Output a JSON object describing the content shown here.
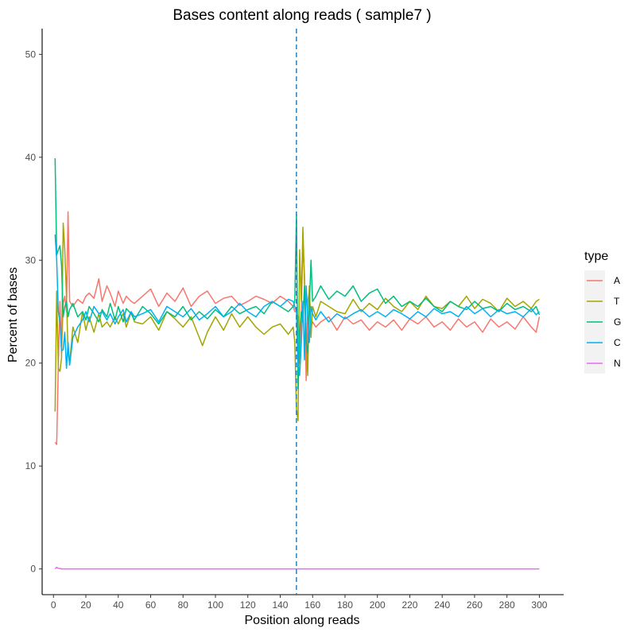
{
  "chart_data": {
    "type": "line",
    "title": "Bases content along reads ( sample7 )",
    "xlabel": "Position along reads",
    "ylabel": "Percent of bases",
    "xlim": [
      -7,
      315
    ],
    "ylim": [
      -2.5,
      52.5
    ],
    "x_ticks": [
      0,
      20,
      40,
      60,
      80,
      100,
      120,
      140,
      160,
      180,
      200,
      220,
      240,
      260,
      280,
      300
    ],
    "y_ticks": [
      0,
      10,
      20,
      30,
      40,
      50
    ],
    "grid": false,
    "legend": {
      "title": "type",
      "placement": "right"
    },
    "vline": {
      "x": 150,
      "style": "dashed",
      "color": "#2c7fb8"
    },
    "series": [
      {
        "name": "A",
        "color": "#F8766D",
        "x": [
          1,
          2,
          3,
          4,
          5,
          6,
          7,
          8,
          9,
          10,
          12,
          15,
          18,
          20,
          22,
          25,
          28,
          30,
          33,
          35,
          38,
          40,
          43,
          45,
          48,
          50,
          55,
          60,
          65,
          70,
          75,
          80,
          85,
          90,
          95,
          100,
          105,
          110,
          115,
          120,
          125,
          130,
          135,
          140,
          145,
          148,
          149,
          150,
          151,
          152,
          153,
          154,
          155,
          156,
          157,
          158,
          159,
          160,
          162,
          165,
          170,
          175,
          180,
          185,
          190,
          195,
          200,
          205,
          210,
          215,
          220,
          225,
          230,
          235,
          240,
          245,
          250,
          255,
          260,
          265,
          270,
          275,
          280,
          285,
          290,
          295,
          298,
          300
        ],
        "y": [
          12.3,
          12.1,
          20,
          26,
          21,
          25.8,
          26.5,
          25,
          34.7,
          26,
          25.5,
          26.2,
          25.8,
          26.5,
          26.8,
          26.3,
          28.2,
          26,
          27.5,
          26.8,
          25.5,
          27,
          25.8,
          26.5,
          26,
          25.8,
          26.5,
          27.2,
          25.5,
          26.8,
          26,
          27.3,
          25.5,
          26.5,
          27,
          25.8,
          26.3,
          26.5,
          25.6,
          26,
          26.5,
          26.2,
          25.8,
          26.5,
          26,
          25.5,
          25,
          25,
          24.5,
          20,
          25,
          31.5,
          28.5,
          18.3,
          26,
          27,
          23.5,
          24,
          23.5,
          24,
          24.5,
          23.2,
          24.5,
          23.8,
          24.2,
          23.2,
          24,
          23.5,
          24.2,
          23.2,
          24.3,
          23.8,
          24.5,
          23.5,
          24,
          23.2,
          24.3,
          23.5,
          24,
          23,
          24.3,
          23.5,
          24,
          23.3,
          24.5,
          23.5,
          23,
          24.5
        ]
      },
      {
        "name": "T",
        "color": "#A3A500",
        "x": [
          1,
          2,
          3,
          4,
          5,
          6,
          7,
          8,
          9,
          10,
          12,
          15,
          18,
          20,
          22,
          25,
          28,
          30,
          33,
          35,
          38,
          40,
          43,
          45,
          48,
          50,
          55,
          60,
          65,
          70,
          75,
          80,
          85,
          90,
          92,
          95,
          100,
          105,
          110,
          115,
          120,
          125,
          130,
          135,
          140,
          145,
          148,
          149,
          150,
          151,
          152,
          153,
          154,
          155,
          156,
          157,
          158,
          159,
          160,
          162,
          165,
          170,
          175,
          180,
          185,
          190,
          195,
          200,
          205,
          210,
          215,
          220,
          225,
          230,
          235,
          240,
          245,
          250,
          255,
          260,
          265,
          270,
          275,
          280,
          285,
          290,
          295,
          298,
          300
        ],
        "y": [
          15.3,
          27,
          19.5,
          19.2,
          20.5,
          33.6,
          31,
          26.5,
          21,
          20,
          23.5,
          22,
          25,
          23.2,
          24.5,
          23,
          24.8,
          23.5,
          24,
          23.5,
          24.5,
          23.8,
          24.8,
          23.5,
          25,
          24,
          23.8,
          24.5,
          23.2,
          25,
          24.3,
          23.5,
          24.5,
          22.5,
          21.7,
          23,
          24.5,
          23.2,
          24.8,
          23.5,
          24.5,
          23.5,
          22.8,
          23.5,
          23.8,
          22.8,
          23.5,
          22,
          15.5,
          14.4,
          31,
          26,
          33.2,
          28,
          23,
          18.8,
          27.5,
          22.5,
          25.5,
          24.5,
          26,
          25.5,
          25,
          24.8,
          26.2,
          25,
          25.8,
          25.2,
          26.3,
          25.5,
          25,
          26,
          25.2,
          26.5,
          25.5,
          25.3,
          26,
          25.5,
          26.5,
          25.3,
          26.2,
          25.8,
          25,
          26.3,
          25.5,
          26,
          25.3,
          26,
          26.2
        ]
      },
      {
        "name": "G",
        "color": "#00BF7D",
        "x": [
          1,
          2,
          3,
          4,
          5,
          6,
          7,
          8,
          9,
          10,
          12,
          15,
          18,
          20,
          22,
          25,
          28,
          30,
          33,
          35,
          38,
          40,
          43,
          45,
          48,
          50,
          55,
          60,
          65,
          70,
          75,
          80,
          85,
          90,
          95,
          100,
          105,
          110,
          115,
          120,
          125,
          130,
          135,
          140,
          145,
          148,
          149,
          150,
          151,
          152,
          153,
          154,
          155,
          156,
          157,
          158,
          159,
          160,
          162,
          165,
          170,
          175,
          180,
          185,
          190,
          195,
          200,
          205,
          210,
          215,
          220,
          225,
          230,
          235,
          240,
          245,
          250,
          255,
          260,
          265,
          270,
          275,
          280,
          285,
          290,
          295,
          298,
          300
        ],
        "y": [
          39.9,
          30.5,
          31,
          31.4,
          29.5,
          24.5,
          25.5,
          26,
          24.5,
          25.2,
          25.8,
          24.5,
          25,
          24.2,
          25.5,
          24.8,
          24,
          25.2,
          24.5,
          25.8,
          24.2,
          25.5,
          24,
          25.3,
          24.8,
          24.2,
          25.5,
          24.8,
          23.8,
          25,
          24.5,
          25.5,
          24.2,
          25,
          24.3,
          25.2,
          24.5,
          25.5,
          24.8,
          25.2,
          25.5,
          24.8,
          26,
          25.5,
          25,
          25.5,
          26,
          34.5,
          17.5,
          23,
          25,
          24,
          27.5,
          22,
          21,
          25.5,
          30,
          26,
          26.5,
          27.5,
          26.2,
          27,
          26.5,
          27.5,
          26,
          26.8,
          27.2,
          25.8,
          26.5,
          25.5,
          26,
          25.5,
          26.3,
          25.5,
          25,
          26,
          25.5,
          25.2,
          26,
          25.3,
          25.5,
          25,
          25.8,
          25.2,
          25.5,
          25,
          25.5,
          24.7
        ]
      },
      {
        "name": "C",
        "color": "#00B0F6",
        "x": [
          1,
          2,
          3,
          4,
          5,
          6,
          7,
          8,
          9,
          10,
          12,
          15,
          18,
          20,
          22,
          25,
          28,
          30,
          33,
          35,
          38,
          40,
          43,
          45,
          48,
          50,
          55,
          60,
          65,
          70,
          75,
          80,
          85,
          90,
          95,
          100,
          105,
          110,
          115,
          120,
          125,
          130,
          135,
          140,
          145,
          148,
          149,
          150,
          151,
          152,
          153,
          154,
          155,
          156,
          157,
          158,
          159,
          160,
          162,
          165,
          170,
          175,
          180,
          185,
          190,
          195,
          200,
          205,
          210,
          215,
          220,
          225,
          230,
          235,
          240,
          245,
          250,
          255,
          260,
          265,
          270,
          275,
          280,
          285,
          290,
          295,
          298,
          300
        ],
        "y": [
          32.5,
          30,
          25,
          24,
          21.2,
          21.3,
          23,
          19.5,
          22,
          19.8,
          22.5,
          23.5,
          24.2,
          25,
          24,
          25.5,
          24.8,
          25,
          24.2,
          24.8,
          23.8,
          24.5,
          25.2,
          24,
          25,
          24.5,
          24.8,
          25.2,
          24,
          25.5,
          25,
          24.5,
          25.3,
          24.2,
          24.8,
          25.5,
          24.5,
          25,
          25.8,
          25,
          24.5,
          25.5,
          26,
          25.5,
          26.2,
          26,
          25.5,
          25,
          19.8,
          18.8,
          22,
          26,
          20.3,
          27.5,
          24.5,
          22,
          25.5,
          24.8,
          24.2,
          25,
          24,
          24.8,
          24.3,
          24.8,
          25.2,
          24.5,
          25,
          24.5,
          25.2,
          24.8,
          24.3,
          25,
          24.5,
          25.3,
          24.8,
          25,
          24.5,
          25.5,
          24.8,
          25.3,
          24.5,
          25.2,
          24.8,
          25,
          24.5,
          25.3,
          24.7,
          25
        ]
      },
      {
        "name": "N",
        "color": "#E76BF3",
        "x": [
          1,
          2,
          3,
          4,
          5,
          10,
          20,
          40,
          60,
          100,
          150,
          200,
          250,
          300
        ],
        "y": [
          0,
          0.15,
          0.05,
          0.05,
          0,
          0,
          0,
          0,
          0,
          0,
          0,
          0,
          0,
          0
        ]
      }
    ]
  }
}
